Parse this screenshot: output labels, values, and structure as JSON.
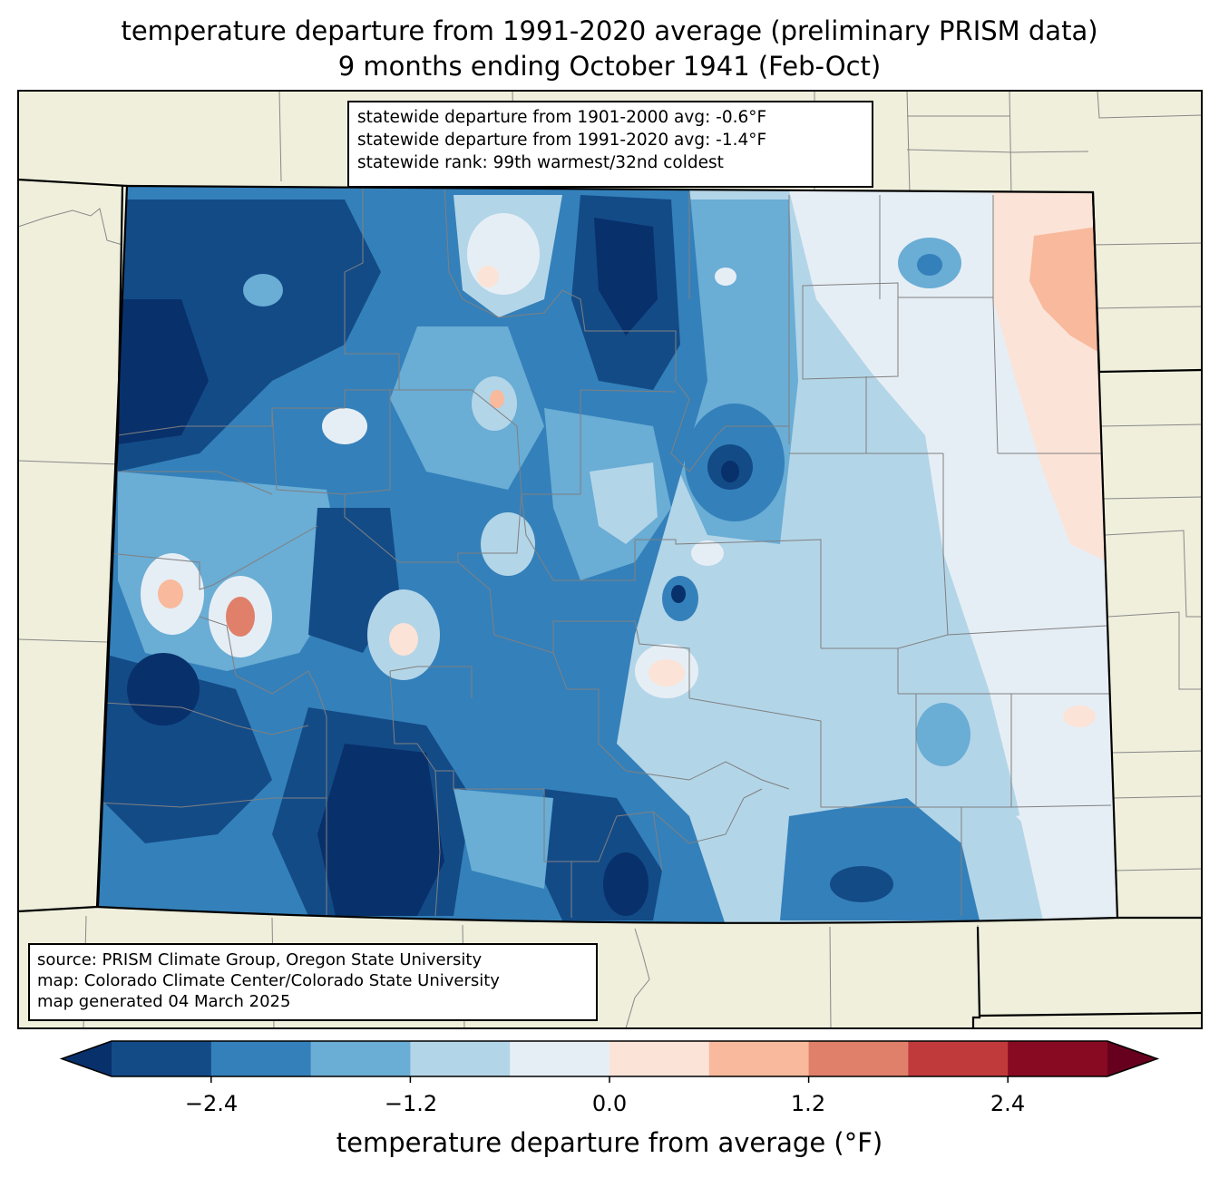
{
  "title": {
    "line1": "temperature departure from 1991-2020 average (preliminary PRISM data)",
    "line2": "9 months ending October 1941 (Feb-Oct)"
  },
  "stats": {
    "line1": "statewide departure from 1901-2000 avg: -0.6°F",
    "line2": "statewide departure from 1991-2020 avg: -1.4°F",
    "line3": "statewide rank: 99th warmest/32nd coldest"
  },
  "source": {
    "line1": "source: PRISM Climate Group, Oregon State University",
    "line2": "map: Colorado Climate Center/Colorado State University",
    "line3": "map generated 04 March 2025"
  },
  "colorbar": {
    "label": "temperature departure from average (°F)",
    "ticks": [
      "−2.4",
      "−1.2",
      "0.0",
      "1.2",
      "2.4"
    ],
    "levels": [
      -3.0,
      -2.4,
      -1.8,
      -1.2,
      -0.6,
      0.0,
      0.6,
      1.2,
      1.8,
      2.4,
      3.0
    ],
    "colors": [
      "#08306b",
      "#134b87",
      "#3480ba",
      "#6aadd5",
      "#b3d5e8",
      "#e6eef5",
      "#fbe3d7",
      "#f8b99c",
      "#e0806a",
      "#c03a3c",
      "#880a22",
      "#67001f"
    ]
  },
  "map": {
    "land_color": "#efefdc",
    "state": "Colorado"
  }
}
